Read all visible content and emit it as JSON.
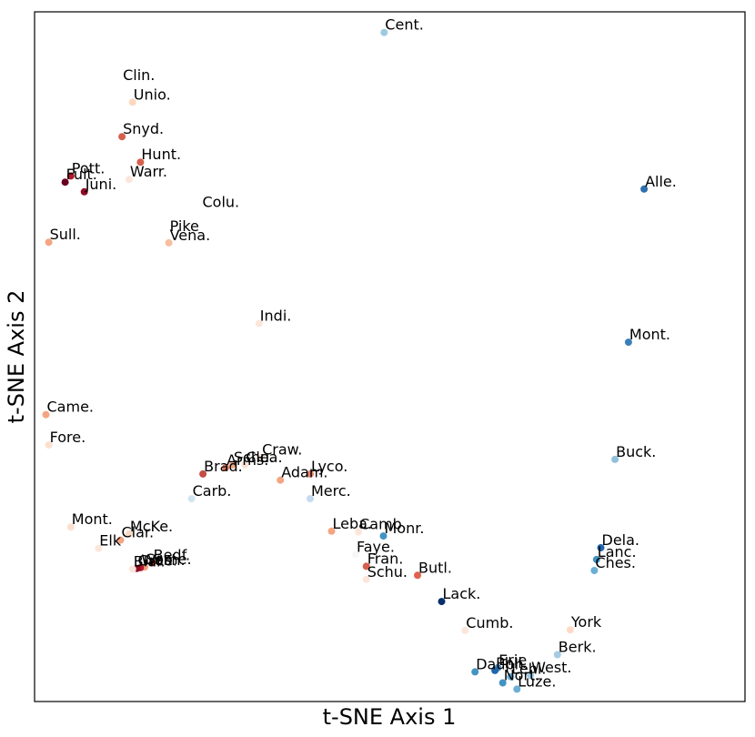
{
  "chart_data": {
    "type": "scatter",
    "xlabel": "t-SNE Axis 1",
    "ylabel": "t-SNE Axis 2",
    "xlim": [
      0,
      100
    ],
    "ylim": [
      0,
      100
    ],
    "ticks": false,
    "grid": false,
    "legend": false,
    "colormap": "RdBu (diverging, dark red to dark blue)",
    "points": [
      {
        "label": "Cent.",
        "x": 49.2,
        "y": 97.0,
        "color": "#9ecae1"
      },
      {
        "label": "Clin.",
        "x": 12.3,
        "y": 89.7,
        "color": "#ffffff"
      },
      {
        "label": "Unio.",
        "x": 13.8,
        "y": 86.9,
        "color": "#fdd8bf"
      },
      {
        "label": "Snyd.",
        "x": 12.3,
        "y": 81.9,
        "color": "#d6604d"
      },
      {
        "label": "Hunt.",
        "x": 14.9,
        "y": 78.2,
        "color": "#d6604d"
      },
      {
        "label": "Pott.",
        "x": 5.1,
        "y": 76.2,
        "color": "#b2182b"
      },
      {
        "label": "Warr.",
        "x": 13.3,
        "y": 75.7,
        "color": "#fbe6db"
      },
      {
        "label": "Fult.",
        "x": 4.3,
        "y": 75.3,
        "color": "#67001f"
      },
      {
        "label": "Juni.",
        "x": 7.0,
        "y": 73.9,
        "color": "#8e0d24"
      },
      {
        "label": "Alle.",
        "x": 85.8,
        "y": 74.3,
        "color": "#2f6fac"
      },
      {
        "label": "Colu.",
        "x": 23.5,
        "y": 71.3,
        "color": "#ffffff"
      },
      {
        "label": "Pike",
        "x": 18.9,
        "y": 67.8,
        "color": "#ffffff"
      },
      {
        "label": "Sull.",
        "x": 2.0,
        "y": 66.6,
        "color": "#f4a582"
      },
      {
        "label": "Vena.",
        "x": 18.9,
        "y": 66.5,
        "color": "#f7bf9f"
      },
      {
        "label": "Indi.",
        "x": 31.6,
        "y": 54.8,
        "color": "#fbe6db"
      },
      {
        "label": "Mont.",
        "x": 83.6,
        "y": 52.1,
        "color": "#3a7fb8"
      },
      {
        "label": "Came.",
        "x": 1.6,
        "y": 41.6,
        "color": "#f4a582"
      },
      {
        "label": "Fore.",
        "x": 2.0,
        "y": 37.2,
        "color": "#fbe0d0"
      },
      {
        "label": "Buck.",
        "x": 81.7,
        "y": 35.1,
        "color": "#92bfdb"
      },
      {
        "label": "Craw.",
        "x": 31.9,
        "y": 35.4,
        "color": "#fbe6db"
      },
      {
        "label": "Clea.",
        "x": 29.6,
        "y": 34.3,
        "color": "#f9e3d6"
      },
      {
        "label": "Schu.",
        "x": 27.9,
        "y": 34.3,
        "color": "#f2a583"
      },
      {
        "label": "Arms.",
        "x": 26.9,
        "y": 33.9,
        "color": "#e07c62"
      },
      {
        "label": "Lyco.",
        "x": 38.8,
        "y": 33.0,
        "color": "#e5826a"
      },
      {
        "label": "Brad.",
        "x": 23.7,
        "y": 33.0,
        "color": "#c44d45"
      },
      {
        "label": "Adam.",
        "x": 34.6,
        "y": 32.1,
        "color": "#f4a582"
      },
      {
        "label": "Carb.",
        "x": 22.1,
        "y": 29.4,
        "color": "#d1e5f0"
      },
      {
        "label": "Merc.",
        "x": 38.8,
        "y": 29.4,
        "color": "#c6dbef"
      },
      {
        "label": "Mont.",
        "x": 5.1,
        "y": 25.3,
        "color": "#fbe0d0"
      },
      {
        "label": "McKe.",
        "x": 13.3,
        "y": 24.3,
        "color": "#fcd9c4"
      },
      {
        "label": "Leba.",
        "x": 41.8,
        "y": 24.7,
        "color": "#f4a582"
      },
      {
        "label": "Camb.",
        "x": 45.6,
        "y": 24.6,
        "color": "#fbe6db"
      },
      {
        "label": "Monr.",
        "x": 49.1,
        "y": 24.0,
        "color": "#4393c3"
      },
      {
        "label": "Clar.",
        "x": 12.1,
        "y": 23.4,
        "color": "#f4a582"
      },
      {
        "label": "Elk",
        "x": 9.0,
        "y": 22.2,
        "color": "#fbe6db"
      },
      {
        "label": "Faye.",
        "x": 45.2,
        "y": 21.3,
        "color": "#f7f7f7"
      },
      {
        "label": "Dela.",
        "x": 79.7,
        "y": 22.3,
        "color": "#2166ac"
      },
      {
        "label": "Lanc.",
        "x": 79.1,
        "y": 20.6,
        "color": "#4393c3"
      },
      {
        "label": "Bedf.",
        "x": 16.6,
        "y": 20.1,
        "color": "#d6604d"
      },
      {
        "label": "Some.",
        "x": 15.5,
        "y": 19.5,
        "color": "#f4a582"
      },
      {
        "label": "Wash.",
        "x": 14.9,
        "y": 19.4,
        "color": "#b2182b"
      },
      {
        "label": "Gree.",
        "x": 14.4,
        "y": 19.3,
        "color": "#8e0d24"
      },
      {
        "label": "Blai.",
        "x": 13.8,
        "y": 19.2,
        "color": "#fbe6db"
      },
      {
        "label": "Fran.",
        "x": 46.7,
        "y": 19.6,
        "color": "#d6604d"
      },
      {
        "label": "Ches.",
        "x": 78.8,
        "y": 19.0,
        "color": "#6baed6"
      },
      {
        "label": "Butl.",
        "x": 53.9,
        "y": 18.3,
        "color": "#e0614e"
      },
      {
        "label": "Schu.",
        "x": 46.7,
        "y": 17.7,
        "color": "#fbe6db"
      },
      {
        "label": "Lack.",
        "x": 57.3,
        "y": 14.5,
        "color": "#08306b"
      },
      {
        "label": "York",
        "x": 75.4,
        "y": 10.4,
        "color": "#fddbc7"
      },
      {
        "label": "Cumb.",
        "x": 60.6,
        "y": 10.3,
        "color": "#fbe6db"
      },
      {
        "label": "Berk.",
        "x": 73.6,
        "y": 6.8,
        "color": "#a6cbe3"
      },
      {
        "label": "Erie",
        "x": 65.2,
        "y": 4.9,
        "color": "#4c8fc1"
      },
      {
        "label": "Dauph.",
        "x": 62.0,
        "y": 4.3,
        "color": "#4393c3"
      },
      {
        "label": "Phil.",
        "x": 64.8,
        "y": 4.5,
        "color": "#2166ac"
      },
      {
        "label": "Lehi.",
        "x": 67.0,
        "y": 3.6,
        "color": "#6baed6"
      },
      {
        "label": "West.",
        "x": 69.8,
        "y": 3.8,
        "color": "#9ecae1"
      },
      {
        "label": "Nort.",
        "x": 65.9,
        "y": 2.7,
        "color": "#4393c3"
      },
      {
        "label": "Luze.",
        "x": 67.9,
        "y": 1.8,
        "color": "#6baed6"
      }
    ]
  }
}
